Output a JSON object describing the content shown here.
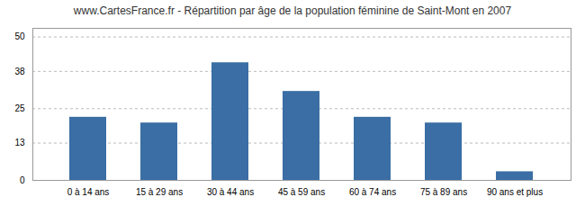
{
  "chart_data": {
    "type": "bar",
    "title": "www.CartesFrance.fr - Répartition par âge de la population féminine de Saint-Mont en 2007",
    "categories": [
      "0 à 14 ans",
      "15 à 29 ans",
      "30 à 44 ans",
      "45 à 59 ans",
      "60 à 74 ans",
      "75 à 89 ans",
      "90 ans et plus"
    ],
    "values": [
      22,
      20,
      41,
      31,
      22,
      20,
      3
    ],
    "color": "#3a6ea5",
    "ylim": [
      0,
      53
    ],
    "yticks": [
      0,
      13,
      25,
      38,
      50
    ],
    "grid": true
  }
}
